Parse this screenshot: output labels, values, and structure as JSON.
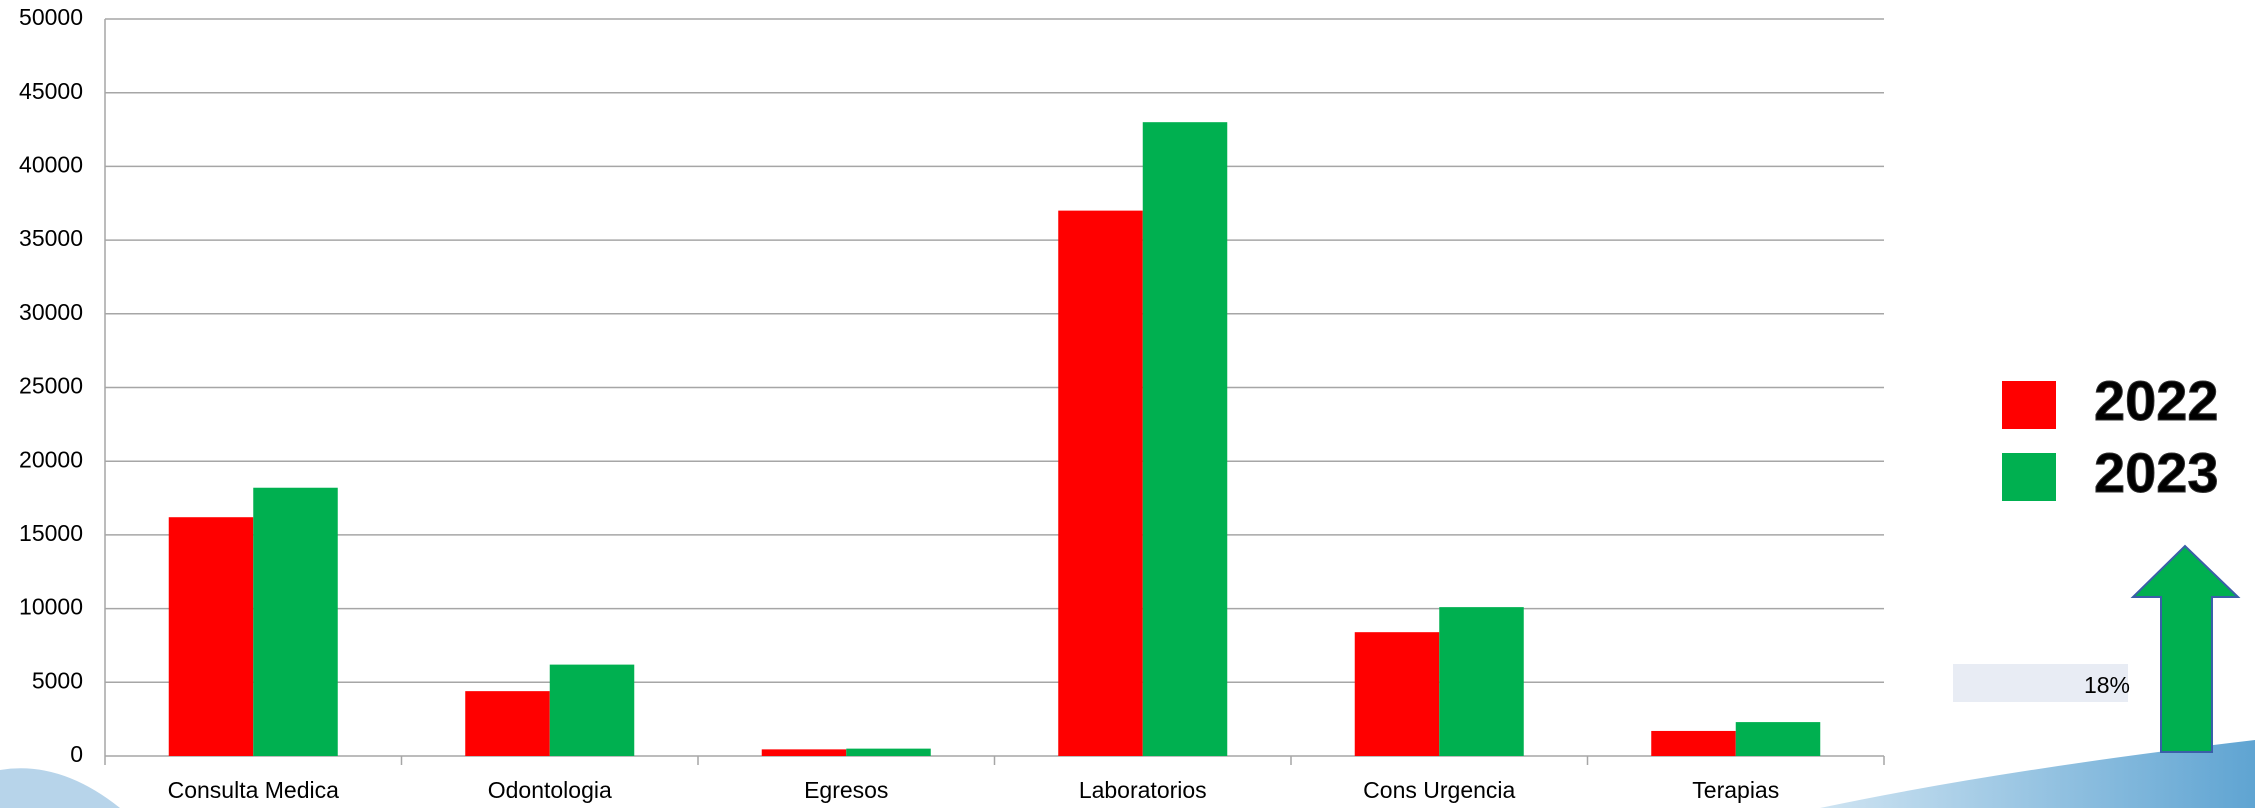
{
  "chart_data": {
    "type": "bar",
    "categories": [
      "Consulta Medica",
      "Odontologia",
      "Egresos",
      "Laboratorios",
      "Cons Urgencia",
      "Terapias"
    ],
    "series": [
      {
        "name": "2022",
        "color": "#ff0000",
        "values": [
          16200,
          4400,
          450,
          37000,
          8400,
          1700
        ]
      },
      {
        "name": "2023",
        "color": "#00b050",
        "values": [
          18200,
          6200,
          500,
          43000,
          10100,
          2300
        ]
      }
    ],
    "ylim": [
      0,
      50000
    ],
    "yticks": [
      0,
      5000,
      10000,
      15000,
      20000,
      25000,
      30000,
      35000,
      40000,
      45000,
      50000
    ],
    "grid": true,
    "annotation": "18%"
  }
}
